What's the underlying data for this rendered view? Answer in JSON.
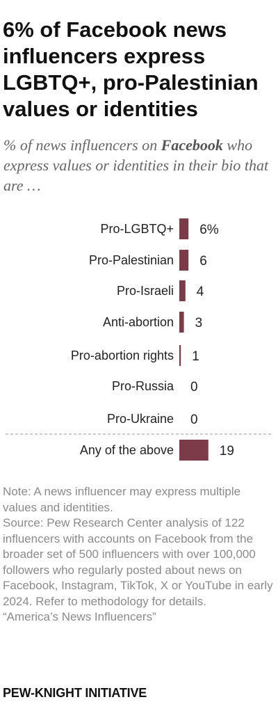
{
  "title": "6% of Facebook news influencers express LGBTQ+, pro-Palestinian values or identities",
  "subtitle": {
    "before": "% of news influencers on ",
    "platform": "Facebook",
    "after": " who express values or identities in their bio that are …"
  },
  "chart_data": {
    "type": "bar",
    "orientation": "horizontal",
    "categories": [
      "Pro-LGBTQ+",
      "Pro-Palestinian",
      "Pro-Israeli",
      "Anti-abortion",
      "Pro-abortion rights",
      "Pro-Russia",
      "Pro-Ukraine",
      "Any of the above"
    ],
    "values": [
      6,
      6,
      4,
      3,
      1,
      0,
      0,
      19
    ],
    "value_labels": [
      "6%",
      "6",
      "4",
      "3",
      "1",
      "0",
      "0",
      "19"
    ],
    "bar_color": "#7b3b48",
    "divider_before_index": 7,
    "axis": "none",
    "grid": false
  },
  "note": {
    "note_text": "Note: A news influencer may express multiple values and identities.",
    "source_text": "Source: Pew Research Center analysis of 122 influencers with accounts on Facebook from the broader set of 500 influencers with over 100,000 followers who regularly posted about news on Facebook, Instagram, TikTok, X or YouTube in early 2024. Refer to methodology for details.",
    "report_text": "“America’s News Influencers”"
  },
  "footer": "PEW-KNIGHT INITIATIVE"
}
